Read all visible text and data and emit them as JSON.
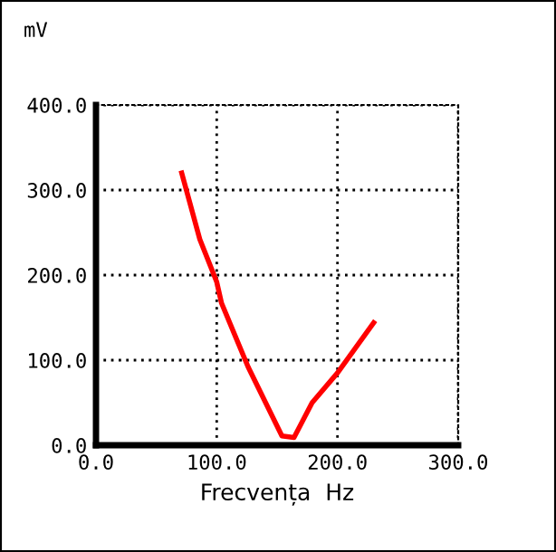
{
  "chart_data": {
    "type": "line",
    "ylabel": "mV",
    "xlabel": "Frecvența  Hz",
    "x": [
      71,
      86,
      100,
      104,
      126,
      154,
      164,
      179,
      200,
      230
    ],
    "series": [
      {
        "color": "#ff0000",
        "values": [
          320,
          242,
          192,
          167,
          92,
          11,
          9,
          50,
          85,
          144
        ]
      }
    ],
    "xlim": [
      0,
      300
    ],
    "ylim": [
      0,
      400
    ],
    "xticks": [
      {
        "value": 0,
        "label": "0.0"
      },
      {
        "value": 100,
        "label": "100.0"
      },
      {
        "value": 200,
        "label": "200.0"
      },
      {
        "value": 300,
        "label": "300.0"
      }
    ],
    "yticks": [
      {
        "value": 0,
        "label": "0.0"
      },
      {
        "value": 100,
        "label": "100.0"
      },
      {
        "value": 200,
        "label": "200.0"
      },
      {
        "value": 300,
        "label": "300.0"
      },
      {
        "value": 400,
        "label": "400.0"
      }
    ],
    "grid": true,
    "line_style": "solid"
  }
}
